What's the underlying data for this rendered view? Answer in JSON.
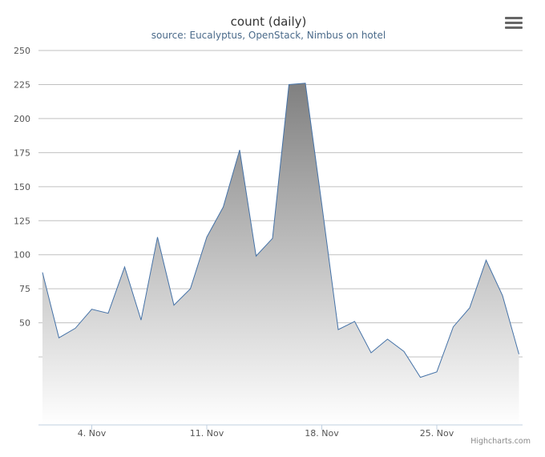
{
  "chart_data": {
    "type": "area",
    "title": "count (daily)",
    "subtitle": "source: Eucalyptus, OpenStack, Nimbus on hotel",
    "credits": "Highcharts.com",
    "ylim": [
      -25,
      250
    ],
    "yticks": [
      25,
      50,
      75,
      100,
      125,
      150,
      175,
      200,
      225,
      250
    ],
    "ytick_labels": [
      "",
      "50",
      "75",
      "100",
      "125",
      "150",
      "175",
      "200",
      "225",
      "250"
    ],
    "xticks": [
      {
        "label": "4. Nov",
        "day": 4
      },
      {
        "label": "11. Nov",
        "day": 11
      },
      {
        "label": "18. Nov",
        "day": 18
      },
      {
        "label": "25. Nov",
        "day": 25
      }
    ],
    "x_days": [
      1,
      2,
      3,
      4,
      5,
      6,
      7,
      8,
      9,
      10,
      11,
      12,
      13,
      14,
      15,
      16,
      17,
      18,
      19,
      20,
      21,
      22,
      23,
      24,
      25,
      26,
      27,
      28,
      29,
      30
    ],
    "values": [
      87,
      39,
      46,
      60,
      57,
      91,
      52,
      113,
      63,
      75,
      113,
      135,
      177,
      99,
      112,
      225,
      226,
      137,
      45,
      51,
      28,
      38,
      29,
      10,
      14,
      47,
      61,
      96,
      70,
      27
    ],
    "line_color": "#4572a7",
    "fill_top_color": "#808080",
    "fill_bottom_color": "#ffffff"
  }
}
